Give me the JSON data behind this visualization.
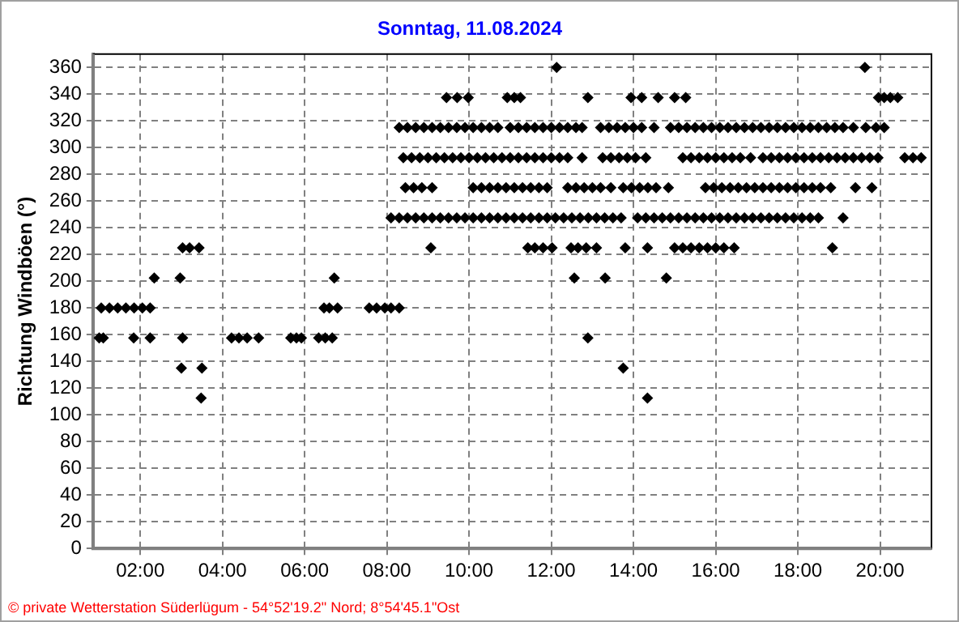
{
  "chart_data": {
    "type": "scatter",
    "title": "Sonntag, 11.08.2024",
    "ylabel": "Richtung Windböen (°)",
    "annotations": [
      "© private Wetterstation Süderlügum - 54°52'19.2\" Nord; 8°54'45.1\"Ost"
    ],
    "xlim": [
      0.85,
      21.25
    ],
    "xticks": [
      {
        "value": 2,
        "label": "02:00"
      },
      {
        "value": 4,
        "label": "04:00"
      },
      {
        "value": 6,
        "label": "06:00"
      },
      {
        "value": 8,
        "label": "08:00"
      },
      {
        "value": 10,
        "label": "10:00"
      },
      {
        "value": 12,
        "label": "12:00"
      },
      {
        "value": 14,
        "label": "14:00"
      },
      {
        "value": 16,
        "label": "16:00"
      },
      {
        "value": 18,
        "label": "18:00"
      },
      {
        "value": 20,
        "label": "20:00"
      }
    ],
    "ylim": [
      0,
      370
    ],
    "yticks": [
      0,
      20,
      40,
      60,
      80,
      100,
      120,
      140,
      160,
      180,
      200,
      220,
      240,
      260,
      280,
      300,
      320,
      340,
      360
    ],
    "grid": true,
    "marker": "diamond",
    "series": [
      {
        "color": "#000000",
        "x": [
          1.0,
          1.1,
          1.84,
          2.24,
          3.03,
          4.22,
          4.4,
          4.6,
          4.88,
          5.66,
          5.8,
          5.92,
          6.34,
          6.5,
          6.67,
          12.89
        ],
        "values": [
          157.5,
          157.5,
          157.5,
          157.5,
          157.5,
          157.5,
          157.5,
          157.5,
          157.5,
          157.5,
          157.5,
          157.5,
          157.5,
          157.5,
          157.5,
          157.5
        ]
      },
      {
        "color": "#000000",
        "x": [
          1.05,
          1.25,
          1.45,
          1.65,
          1.85,
          2.05,
          2.24,
          6.47,
          6.6,
          6.8,
          7.57,
          7.75,
          7.95,
          8.1,
          8.3
        ],
        "values": [
          180,
          180,
          180,
          180,
          180,
          180,
          180,
          180,
          180,
          180,
          180,
          180,
          180,
          180,
          180
        ]
      },
      {
        "color": "#000000",
        "x": [
          2.34,
          2.97,
          6.72,
          12.56,
          13.31,
          14.8
        ],
        "values": [
          202.5,
          202.5,
          202.5,
          202.5,
          202.5,
          202.5
        ]
      },
      {
        "color": "#000000",
        "x": [
          3.03,
          3.2,
          3.43,
          9.07,
          11.43,
          11.6,
          11.8,
          12.02,
          12.48,
          12.65,
          12.85,
          13.1,
          13.8,
          14.34,
          15.0,
          15.2,
          15.4,
          15.6,
          15.8,
          16.0,
          16.2,
          16.45,
          18.84
        ],
        "values": [
          225,
          225,
          225,
          225,
          225,
          225,
          225,
          225,
          225,
          225,
          225,
          225,
          225,
          225,
          225,
          225,
          225,
          225,
          225,
          225,
          225,
          225,
          225
        ]
      },
      {
        "color": "#000000",
        "x": [
          3.0,
          3.5,
          13.75
        ],
        "values": [
          135,
          135,
          135
        ]
      },
      {
        "color": "#000000",
        "x": [
          3.48,
          14.34
        ],
        "values": [
          112.5,
          112.5
        ]
      },
      {
        "color": "#000000",
        "x": [
          8.1,
          8.3,
          8.5,
          8.7,
          8.9,
          9.1,
          9.3,
          9.5,
          9.7,
          9.9,
          10.1,
          10.3,
          10.5,
          10.7,
          10.9,
          11.1,
          11.3,
          11.5,
          11.7,
          11.9,
          12.1,
          12.3,
          12.5,
          12.7,
          12.9,
          13.1,
          13.3,
          13.5,
          13.7,
          14.1,
          14.3,
          14.5,
          14.7,
          14.9,
          15.1,
          15.3,
          15.5,
          15.7,
          15.9,
          16.1,
          16.3,
          16.5,
          16.7,
          16.9,
          17.1,
          17.3,
          17.5,
          17.7,
          17.9,
          18.1,
          18.3,
          18.5,
          19.1
        ],
        "values": [
          247.5,
          247.5,
          247.5,
          247.5,
          247.5,
          247.5,
          247.5,
          247.5,
          247.5,
          247.5,
          247.5,
          247.5,
          247.5,
          247.5,
          247.5,
          247.5,
          247.5,
          247.5,
          247.5,
          247.5,
          247.5,
          247.5,
          247.5,
          247.5,
          247.5,
          247.5,
          247.5,
          247.5,
          247.5,
          247.5,
          247.5,
          247.5,
          247.5,
          247.5,
          247.5,
          247.5,
          247.5,
          247.5,
          247.5,
          247.5,
          247.5,
          247.5,
          247.5,
          247.5,
          247.5,
          247.5,
          247.5,
          247.5,
          247.5,
          247.5,
          247.5,
          247.5,
          247.5
        ]
      },
      {
        "color": "#000000",
        "x": [
          8.45,
          8.65,
          8.85,
          9.1,
          10.1,
          10.3,
          10.5,
          10.7,
          10.9,
          11.1,
          11.3,
          11.5,
          11.7,
          11.9,
          12.4,
          12.6,
          12.8,
          13.0,
          13.2,
          13.45,
          13.75,
          13.95,
          14.15,
          14.35,
          14.55,
          14.85,
          15.75,
          15.95,
          16.15,
          16.35,
          16.55,
          16.75,
          16.95,
          17.15,
          17.35,
          17.55,
          17.75,
          17.95,
          18.15,
          18.35,
          18.55,
          18.8,
          19.4,
          19.8
        ],
        "values": [
          270,
          270,
          270,
          270,
          270,
          270,
          270,
          270,
          270,
          270,
          270,
          270,
          270,
          270,
          270,
          270,
          270,
          270,
          270,
          270,
          270,
          270,
          270,
          270,
          270,
          270,
          270,
          270,
          270,
          270,
          270,
          270,
          270,
          270,
          270,
          270,
          270,
          270,
          270,
          270,
          270,
          270,
          270,
          270
        ]
      },
      {
        "color": "#000000",
        "x": [
          8.4,
          8.6,
          8.8,
          9.0,
          9.2,
          9.4,
          9.6,
          9.8,
          10.0,
          10.2,
          10.4,
          10.6,
          10.8,
          11.0,
          11.2,
          11.4,
          11.6,
          11.8,
          12.0,
          12.2,
          12.4,
          12.75,
          13.25,
          13.45,
          13.65,
          13.85,
          14.05,
          14.3,
          15.2,
          15.4,
          15.6,
          15.8,
          16.0,
          16.2,
          16.4,
          16.6,
          16.85,
          17.15,
          17.35,
          17.55,
          17.75,
          17.95,
          18.15,
          18.35,
          18.55,
          18.75,
          18.95,
          19.15,
          19.35,
          19.55,
          19.75,
          19.95,
          20.6,
          20.8,
          21.0
        ],
        "values": [
          292.5,
          292.5,
          292.5,
          292.5,
          292.5,
          292.5,
          292.5,
          292.5,
          292.5,
          292.5,
          292.5,
          292.5,
          292.5,
          292.5,
          292.5,
          292.5,
          292.5,
          292.5,
          292.5,
          292.5,
          292.5,
          292.5,
          292.5,
          292.5,
          292.5,
          292.5,
          292.5,
          292.5,
          292.5,
          292.5,
          292.5,
          292.5,
          292.5,
          292.5,
          292.5,
          292.5,
          292.5,
          292.5,
          292.5,
          292.5,
          292.5,
          292.5,
          292.5,
          292.5,
          292.5,
          292.5,
          292.5,
          292.5,
          292.5,
          292.5,
          292.5,
          292.5,
          292.5,
          292.5,
          292.5
        ]
      },
      {
        "color": "#000000",
        "x": [
          8.3,
          8.5,
          8.7,
          8.9,
          9.1,
          9.3,
          9.5,
          9.7,
          9.9,
          10.1,
          10.3,
          10.5,
          10.7,
          11.0,
          11.2,
          11.4,
          11.6,
          11.8,
          12.0,
          12.2,
          12.4,
          12.6,
          12.75,
          13.2,
          13.4,
          13.6,
          13.8,
          14.0,
          14.2,
          14.5,
          14.9,
          15.1,
          15.3,
          15.5,
          15.7,
          15.9,
          16.1,
          16.3,
          16.5,
          16.7,
          16.9,
          17.1,
          17.3,
          17.5,
          17.7,
          17.9,
          18.1,
          18.3,
          18.5,
          18.7,
          18.9,
          19.1,
          19.35,
          19.65,
          19.9,
          20.1
        ],
        "values": [
          315,
          315,
          315,
          315,
          315,
          315,
          315,
          315,
          315,
          315,
          315,
          315,
          315,
          315,
          315,
          315,
          315,
          315,
          315,
          315,
          315,
          315,
          315,
          315,
          315,
          315,
          315,
          315,
          315,
          315,
          315,
          315,
          315,
          315,
          315,
          315,
          315,
          315,
          315,
          315,
          315,
          315,
          315,
          315,
          315,
          315,
          315,
          315,
          315,
          315,
          315,
          315,
          315,
          315,
          315,
          315
        ]
      },
      {
        "color": "#000000",
        "x": [
          9.45,
          9.71,
          9.98,
          10.93,
          11.1,
          11.25,
          12.89,
          13.94,
          14.2,
          14.6,
          15.0,
          15.27,
          19.96,
          20.1,
          20.25,
          20.43
        ],
        "values": [
          337.5,
          337.5,
          337.5,
          337.5,
          337.5,
          337.5,
          337.5,
          337.5,
          337.5,
          337.5,
          337.5,
          337.5,
          337.5,
          337.5,
          337.5,
          337.5
        ]
      },
      {
        "color": "#000000",
        "x": [
          12.13,
          19.63
        ],
        "values": [
          360,
          360
        ]
      }
    ]
  }
}
